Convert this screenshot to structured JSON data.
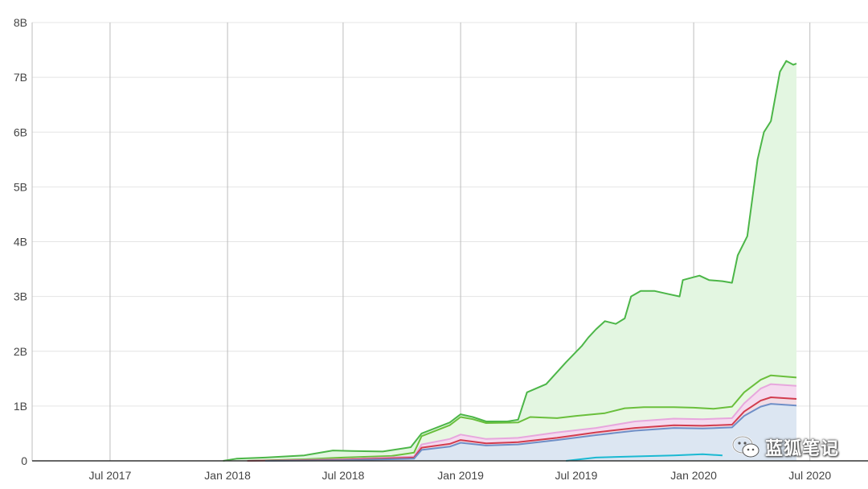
{
  "chart_data": {
    "type": "area",
    "title": "",
    "xlabel": "",
    "ylabel": "",
    "x_ticks": [
      "Jul 2017",
      "Jan 2018",
      "Jul 2018",
      "Jan 2019",
      "Jul 2019",
      "Jan 2020",
      "Jul 2020"
    ],
    "y_ticks": [
      "0",
      "1B",
      "2B",
      "3B",
      "4B",
      "5B",
      "6B",
      "7B",
      "8B"
    ],
    "ylim": [
      0,
      8000000000
    ],
    "xlim": [
      "2017-03-01",
      "2020-09-30"
    ],
    "grid": true,
    "legend": "none",
    "series": [
      {
        "color": "#4cb648",
        "fill": "#e3f6e1",
        "points": [
          [
            "2017-12-25",
            0
          ],
          [
            "2018-01-15",
            40000000
          ],
          [
            "2018-03-01",
            60000000
          ],
          [
            "2018-05-01",
            100000000
          ],
          [
            "2018-06-15",
            190000000
          ],
          [
            "2018-07-15",
            180000000
          ],
          [
            "2018-09-01",
            170000000
          ],
          [
            "2018-10-15",
            250000000
          ],
          [
            "2018-11-01",
            500000000
          ],
          [
            "2018-12-15",
            700000000
          ],
          [
            "2019-01-01",
            850000000
          ],
          [
            "2019-01-20",
            800000000
          ],
          [
            "2019-02-10",
            720000000
          ],
          [
            "2019-03-15",
            720000000
          ],
          [
            "2019-04-01",
            750000000
          ],
          [
            "2019-04-15",
            1250000000
          ],
          [
            "2019-05-15",
            1400000000
          ],
          [
            "2019-06-15",
            1800000000
          ],
          [
            "2019-07-10",
            2100000000
          ],
          [
            "2019-07-20",
            2250000000
          ],
          [
            "2019-08-01",
            2400000000
          ],
          [
            "2019-08-15",
            2550000000
          ],
          [
            "2019-09-01",
            2500000000
          ],
          [
            "2019-09-15",
            2600000000
          ],
          [
            "2019-09-25",
            3000000000
          ],
          [
            "2019-10-10",
            3100000000
          ],
          [
            "2019-11-01",
            3100000000
          ],
          [
            "2019-11-20",
            3050000000
          ],
          [
            "2019-12-10",
            3000000000
          ],
          [
            "2019-12-15",
            3300000000
          ],
          [
            "2020-01-10",
            3380000000
          ],
          [
            "2020-01-25",
            3300000000
          ],
          [
            "2020-02-15",
            3280000000
          ],
          [
            "2020-03-01",
            3250000000
          ],
          [
            "2020-03-10",
            3750000000
          ],
          [
            "2020-03-25",
            4100000000
          ],
          [
            "2020-04-10",
            5500000000
          ],
          [
            "2020-04-20",
            6000000000
          ],
          [
            "2020-05-01",
            6200000000
          ],
          [
            "2020-05-15",
            7100000000
          ],
          [
            "2020-05-25",
            7300000000
          ],
          [
            "2020-06-05",
            7230000000
          ],
          [
            "2020-06-10",
            7250000000
          ]
        ]
      },
      {
        "color": "#6abf3c",
        "fill": "#e8f7e3",
        "points": [
          [
            "2018-02-01",
            0
          ],
          [
            "2018-05-01",
            30000000
          ],
          [
            "2018-07-01",
            60000000
          ],
          [
            "2018-09-15",
            90000000
          ],
          [
            "2018-10-20",
            150000000
          ],
          [
            "2018-11-01",
            450000000
          ],
          [
            "2018-12-15",
            650000000
          ],
          [
            "2019-01-01",
            800000000
          ],
          [
            "2019-01-20",
            760000000
          ],
          [
            "2019-02-10",
            690000000
          ],
          [
            "2019-04-01",
            700000000
          ],
          [
            "2019-04-20",
            800000000
          ],
          [
            "2019-06-01",
            780000000
          ],
          [
            "2019-07-01",
            820000000
          ],
          [
            "2019-08-15",
            870000000
          ],
          [
            "2019-09-15",
            960000000
          ],
          [
            "2019-10-15",
            980000000
          ],
          [
            "2019-12-01",
            980000000
          ],
          [
            "2020-01-01",
            970000000
          ],
          [
            "2020-02-01",
            950000000
          ],
          [
            "2020-03-01",
            990000000
          ],
          [
            "2020-03-20",
            1250000000
          ],
          [
            "2020-04-15",
            1480000000
          ],
          [
            "2020-05-01",
            1560000000
          ],
          [
            "2020-06-10",
            1520000000
          ]
        ]
      },
      {
        "color": "#e7a7dd",
        "fill": "#f5dbef",
        "points": [
          [
            "2018-02-01",
            0
          ],
          [
            "2018-07-01",
            30000000
          ],
          [
            "2018-10-20",
            80000000
          ],
          [
            "2018-11-01",
            300000000
          ],
          [
            "2018-12-15",
            400000000
          ],
          [
            "2019-01-01",
            480000000
          ],
          [
            "2019-02-10",
            400000000
          ],
          [
            "2019-04-01",
            420000000
          ],
          [
            "2019-06-01",
            520000000
          ],
          [
            "2019-08-01",
            600000000
          ],
          [
            "2019-10-01",
            720000000
          ],
          [
            "2019-12-01",
            770000000
          ],
          [
            "2020-01-15",
            760000000
          ],
          [
            "2020-03-01",
            780000000
          ],
          [
            "2020-03-20",
            1050000000
          ],
          [
            "2020-04-15",
            1320000000
          ],
          [
            "2020-05-01",
            1400000000
          ],
          [
            "2020-06-10",
            1370000000
          ]
        ]
      },
      {
        "color": "#d23c4e",
        "fill": "#f1dde6",
        "points": [
          [
            "2018-02-01",
            0
          ],
          [
            "2018-07-01",
            20000000
          ],
          [
            "2018-10-20",
            60000000
          ],
          [
            "2018-11-01",
            240000000
          ],
          [
            "2018-12-15",
            310000000
          ],
          [
            "2019-01-01",
            380000000
          ],
          [
            "2019-02-10",
            320000000
          ],
          [
            "2019-04-01",
            340000000
          ],
          [
            "2019-06-01",
            420000000
          ],
          [
            "2019-08-01",
            520000000
          ],
          [
            "2019-10-01",
            600000000
          ],
          [
            "2019-12-01",
            650000000
          ],
          [
            "2020-01-15",
            640000000
          ],
          [
            "2020-03-01",
            660000000
          ],
          [
            "2020-03-20",
            900000000
          ],
          [
            "2020-04-15",
            1100000000
          ],
          [
            "2020-05-01",
            1160000000
          ],
          [
            "2020-06-10",
            1130000000
          ]
        ]
      },
      {
        "color": "#6f8fc7",
        "fill": "#dce6f2",
        "points": [
          [
            "2018-03-01",
            0
          ],
          [
            "2018-07-01",
            10000000
          ],
          [
            "2018-10-20",
            40000000
          ],
          [
            "2018-11-01",
            200000000
          ],
          [
            "2018-12-15",
            260000000
          ],
          [
            "2019-01-01",
            330000000
          ],
          [
            "2019-02-10",
            280000000
          ],
          [
            "2019-04-01",
            300000000
          ],
          [
            "2019-06-01",
            380000000
          ],
          [
            "2019-08-01",
            470000000
          ],
          [
            "2019-10-01",
            550000000
          ],
          [
            "2019-12-01",
            600000000
          ],
          [
            "2020-01-15",
            590000000
          ],
          [
            "2020-03-01",
            610000000
          ],
          [
            "2020-03-20",
            820000000
          ],
          [
            "2020-04-15",
            990000000
          ],
          [
            "2020-05-01",
            1040000000
          ],
          [
            "2020-06-10",
            1010000000
          ]
        ]
      },
      {
        "color": "#1bb9d2",
        "fill": "none",
        "points": [
          [
            "2019-06-15",
            0
          ],
          [
            "2019-08-01",
            60000000
          ],
          [
            "2019-10-01",
            80000000
          ],
          [
            "2019-12-01",
            100000000
          ],
          [
            "2020-01-15",
            120000000
          ],
          [
            "2020-02-15",
            100000000
          ]
        ]
      }
    ]
  },
  "watermark": {
    "text": "蓝狐笔记",
    "icon": "wechat-icon"
  }
}
